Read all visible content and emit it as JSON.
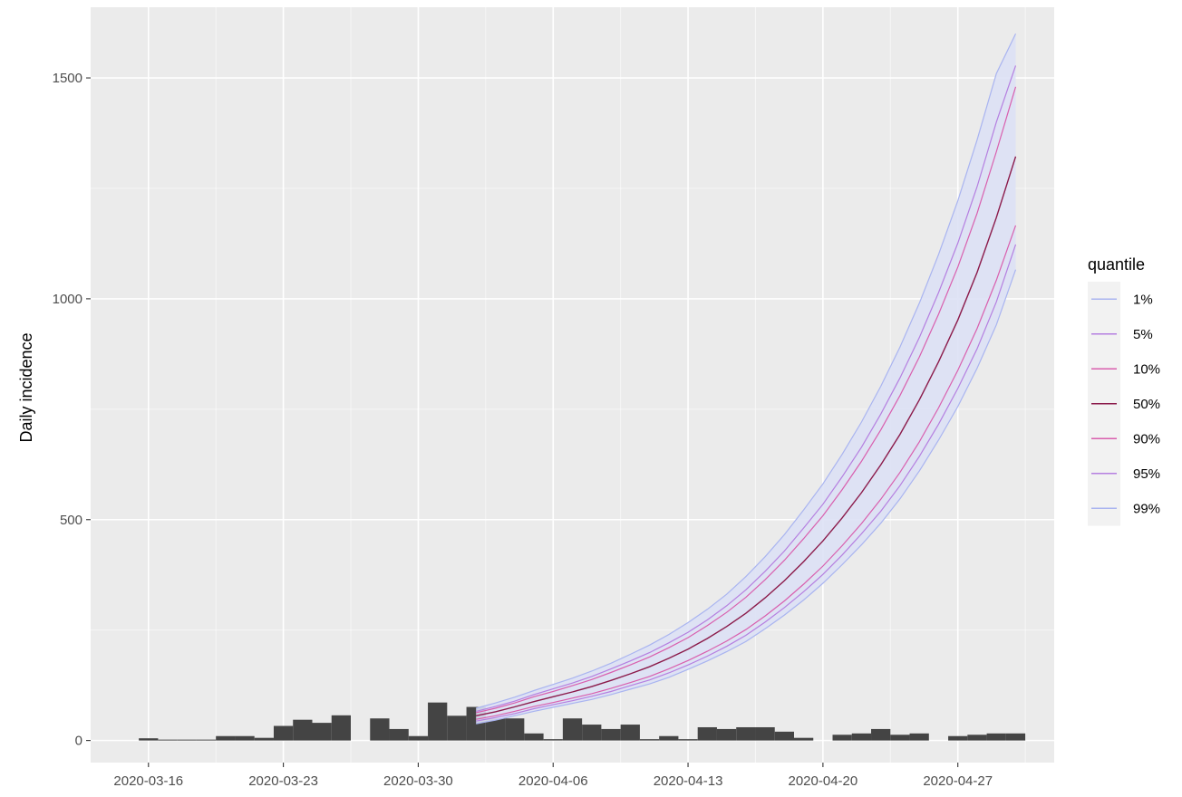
{
  "chart_data": {
    "type": "bar",
    "ylabel": "Daily incidence",
    "xlabel": "",
    "x_ticks": [
      "2020-03-16",
      "2020-03-23",
      "2020-03-30",
      "2020-04-06",
      "2020-04-13",
      "2020-04-20",
      "2020-04-27"
    ],
    "y_ticks": [
      "0",
      "500",
      "1000",
      "1500"
    ],
    "ylim": [
      -50,
      1660
    ],
    "xlim": [
      "2020-03-13",
      "2020-05-02"
    ],
    "grid": true,
    "legend_position": "right",
    "observed": {
      "dates": [
        "2020-03-16",
        "2020-03-17",
        "2020-03-18",
        "2020-03-19",
        "2020-03-20",
        "2020-03-21",
        "2020-03-22",
        "2020-03-23",
        "2020-03-24",
        "2020-03-25",
        "2020-03-26",
        "2020-03-27",
        "2020-03-28",
        "2020-03-29",
        "2020-03-30",
        "2020-03-31",
        "2020-04-01",
        "2020-04-02",
        "2020-04-03",
        "2020-04-04",
        "2020-04-05",
        "2020-04-06",
        "2020-04-07",
        "2020-04-08",
        "2020-04-09",
        "2020-04-10",
        "2020-04-11",
        "2020-04-12",
        "2020-04-13",
        "2020-04-14",
        "2020-04-15",
        "2020-04-16",
        "2020-04-17",
        "2020-04-18",
        "2020-04-19",
        "2020-04-20",
        "2020-04-21",
        "2020-04-22",
        "2020-04-23",
        "2020-04-24",
        "2020-04-25",
        "2020-04-26",
        "2020-04-27",
        "2020-04-28",
        "2020-04-29",
        "2020-04-30"
      ],
      "values": [
        5,
        2,
        2,
        2,
        10,
        10,
        6,
        33,
        47,
        40,
        57,
        0,
        50,
        26,
        10,
        86,
        56,
        76,
        50,
        50,
        16,
        3,
        50,
        36,
        26,
        36,
        3,
        10,
        3,
        30,
        26,
        30,
        30,
        20,
        6,
        0,
        13,
        16,
        26,
        13,
        16,
        0,
        10,
        13,
        16,
        16
      ],
      "color": "#444444"
    },
    "projection": {
      "dates": [
        "2020-04-02",
        "2020-04-03",
        "2020-04-04",
        "2020-04-05",
        "2020-04-06",
        "2020-04-07",
        "2020-04-08",
        "2020-04-09",
        "2020-04-10",
        "2020-04-11",
        "2020-04-12",
        "2020-04-13",
        "2020-04-14",
        "2020-04-15",
        "2020-04-16",
        "2020-04-17",
        "2020-04-18",
        "2020-04-19",
        "2020-04-20",
        "2020-04-21",
        "2020-04-22",
        "2020-04-23",
        "2020-04-24",
        "2020-04-25",
        "2020-04-26",
        "2020-04-27",
        "2020-04-28",
        "2020-04-29",
        "2020-04-30"
      ],
      "series": [
        {
          "name": "1%",
          "color": "#a9b4f0",
          "values": [
            38,
            46,
            56,
            66,
            75,
            84,
            93,
            104,
            116,
            128,
            143,
            161,
            180,
            201,
            224,
            253,
            284,
            318,
            356,
            398,
            443,
            492,
            547,
            610,
            680,
            756,
            843,
            941,
            1066
          ]
        },
        {
          "name": "5%",
          "color": "#b57fe0",
          "values": [
            44,
            52,
            61,
            72,
            81,
            90,
            100,
            111,
            124,
            137,
            153,
            171,
            191,
            213,
            238,
            268,
            301,
            337,
            376,
            420,
            468,
            519,
            577,
            643,
            716,
            797,
            887,
            993,
            1123
          ]
        },
        {
          "name": "10%",
          "color": "#d95fae",
          "values": [
            48,
            56,
            66,
            77,
            86,
            96,
            106,
            118,
            131,
            145,
            162,
            181,
            202,
            225,
            251,
            282,
            316,
            354,
            395,
            441,
            491,
            546,
            607,
            676,
            753,
            838,
            933,
            1042,
            1166
          ]
        },
        {
          "name": "50%",
          "color": "#8b1a4a",
          "values": [
            56,
            65,
            76,
            88,
            99,
            110,
            122,
            136,
            151,
            167,
            186,
            207,
            231,
            258,
            288,
            323,
            362,
            405,
            452,
            504,
            561,
            624,
            693,
            771,
            857,
            952,
            1060,
            1184,
            1322
          ]
        },
        {
          "name": "90%",
          "color": "#d95fae",
          "values": [
            63,
            73,
            85,
            99,
            111,
            124,
            138,
            154,
            171,
            189,
            210,
            233,
            260,
            290,
            324,
            364,
            408,
            457,
            509,
            568,
            632,
            703,
            781,
            868,
            965,
            1072,
            1194,
            1333,
            1480
          ]
        },
        {
          "name": "95%",
          "color": "#b57fe0",
          "values": [
            66,
            77,
            89,
            104,
            117,
            130,
            145,
            162,
            180,
            199,
            221,
            245,
            273,
            305,
            341,
            383,
            429,
            481,
            535,
            597,
            664,
            739,
            821,
            912,
            1014,
            1126,
            1254,
            1400,
            1528
          ]
        },
        {
          "name": "99%",
          "color": "#a9b4f0",
          "values": [
            73,
            85,
            98,
            113,
            127,
            141,
            157,
            175,
            195,
            216,
            240,
            267,
            297,
            331,
            371,
            416,
            466,
            522,
            581,
            648,
            721,
            802,
            891,
            990,
            1100,
            1222,
            1360,
            1510,
            1600
          ]
        }
      ]
    }
  },
  "legend": {
    "title": "quantile"
  },
  "colors": {
    "panel_bg": "#ebebeb",
    "grid_major": "#ffffff",
    "ribbon_fill": "#dde1f5"
  }
}
